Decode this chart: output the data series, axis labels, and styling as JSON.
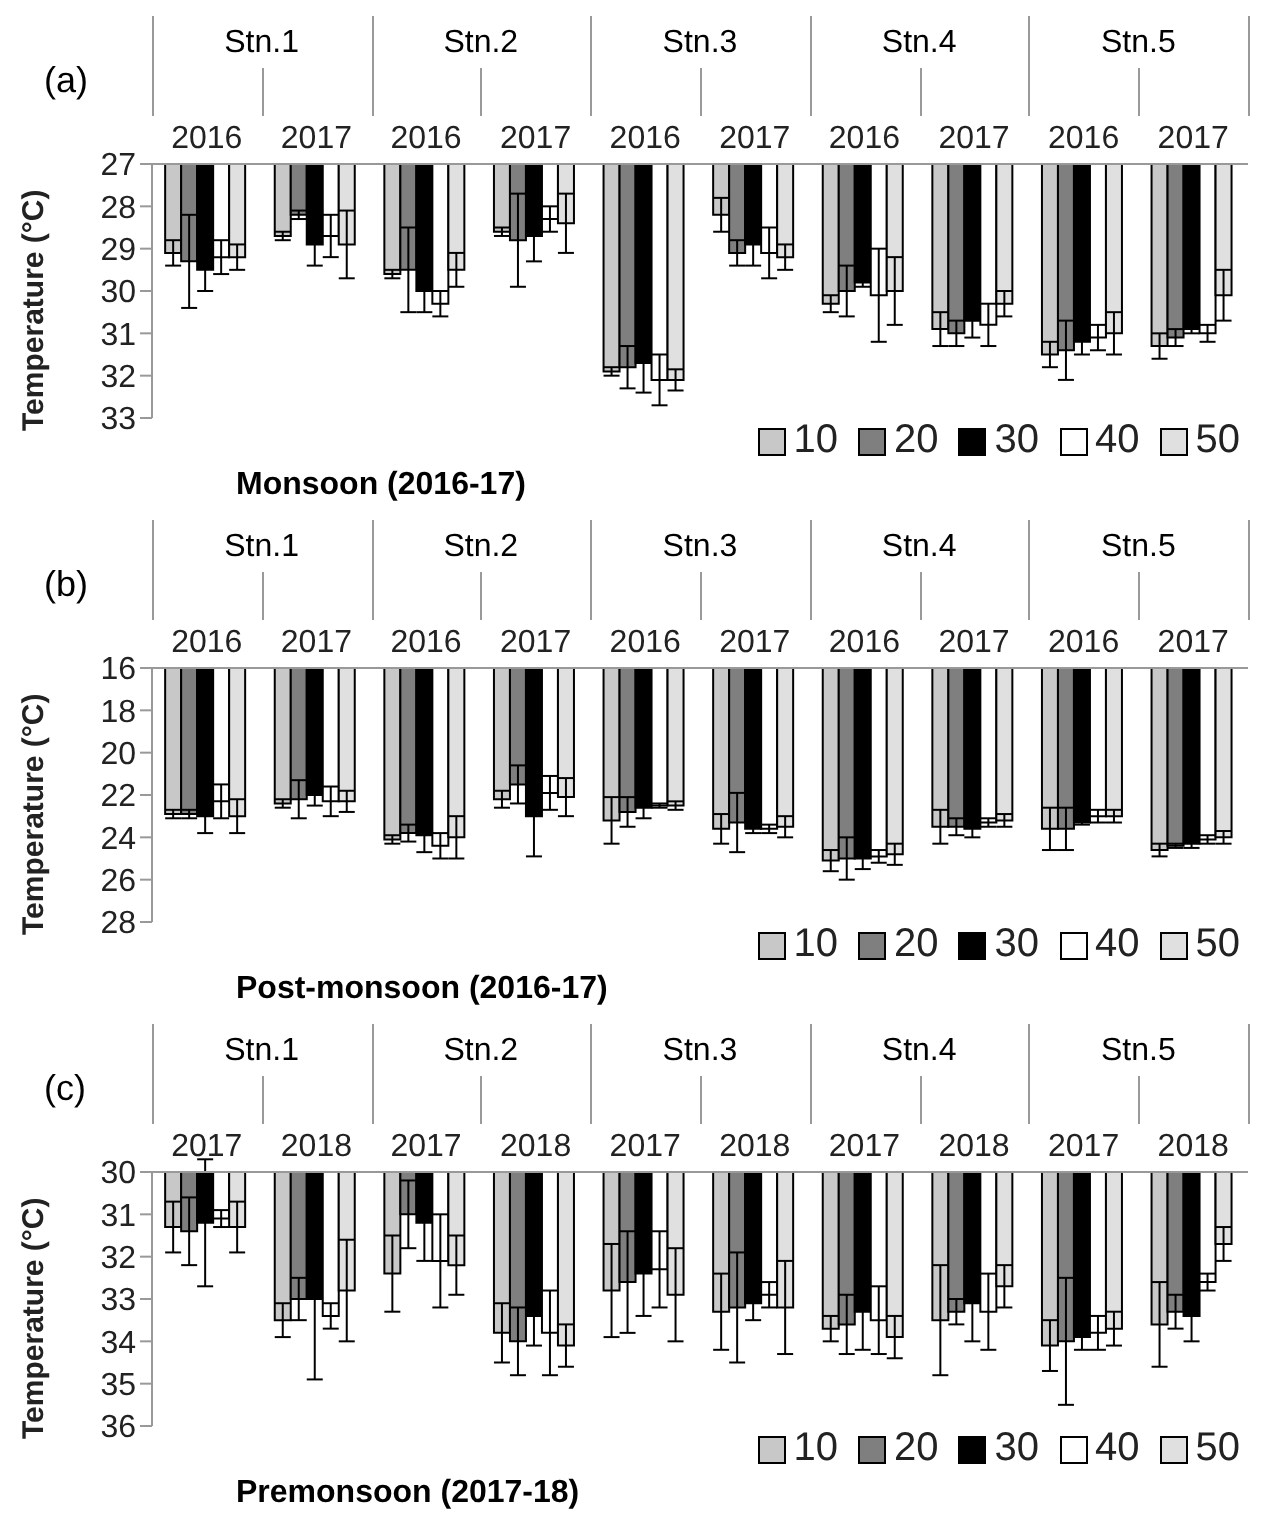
{
  "chart_data": [
    {
      "type": "bar",
      "title": "(a)",
      "xlabel": "Monsoon (2016-17)",
      "ylabel": "Temperature (°C)",
      "annotations": [
        "Stn.1",
        "Stn.2",
        "Stn.3",
        "Stn.4",
        "Stn.5"
      ],
      "categories": [
        "2016",
        "2017",
        "2016",
        "2017",
        "2016",
        "2017",
        "2016",
        "2017",
        "2016",
        "2017"
      ],
      "ylim": [
        33,
        27
      ],
      "yticks": [
        27,
        28,
        29,
        30,
        31,
        32,
        33
      ],
      "legend": "bottom right",
      "series": [
        {
          "name": "10",
          "color": "#c8c8c8",
          "values": [
            29.1,
            28.7,
            29.6,
            28.6,
            31.9,
            28.2,
            30.3,
            30.9,
            31.5,
            31.3
          ],
          "errors": [
            0.3,
            0.1,
            0.1,
            0.1,
            0.1,
            0.4,
            0.2,
            0.4,
            0.3,
            0.3
          ]
        },
        {
          "name": "20",
          "color": "#7f7f7f",
          "values": [
            29.3,
            28.2,
            29.5,
            28.8,
            31.8,
            29.1,
            30.0,
            31.0,
            31.4,
            31.1
          ],
          "errors": [
            1.1,
            0.1,
            1.0,
            1.1,
            0.5,
            0.3,
            0.6,
            0.3,
            0.7,
            0.2
          ]
        },
        {
          "name": "30",
          "color": "#000000",
          "values": [
            29.5,
            28.9,
            30.0,
            28.7,
            31.7,
            28.9,
            29.8,
            30.7,
            31.2,
            30.9
          ],
          "errors": [
            0.5,
            0.5,
            0.5,
            0.6,
            0.7,
            0.5,
            0.1,
            0.4,
            0.3,
            0.1
          ]
        },
        {
          "name": "40",
          "color": "#ffffff",
          "values": [
            29.2,
            28.7,
            30.3,
            28.3,
            32.1,
            29.1,
            30.1,
            30.8,
            31.1,
            31.0
          ],
          "errors": [
            0.4,
            0.5,
            0.3,
            0.3,
            0.6,
            0.6,
            1.1,
            0.5,
            0.3,
            0.2
          ]
        },
        {
          "name": "50",
          "color": "#e0e0e0",
          "values": [
            29.2,
            28.9,
            29.5,
            28.4,
            32.1,
            29.2,
            30.0,
            30.3,
            31.0,
            30.1
          ],
          "errors": [
            0.3,
            0.8,
            0.4,
            0.7,
            0.25,
            0.3,
            0.8,
            0.3,
            0.5,
            0.6
          ]
        }
      ]
    },
    {
      "type": "bar",
      "title": "(b)",
      "xlabel": "Post-monsoon (2016-17)",
      "ylabel": "Temperature (°C)",
      "annotations": [
        "Stn.1",
        "Stn.2",
        "Stn.3",
        "Stn.4",
        "Stn.5"
      ],
      "categories": [
        "2016",
        "2017",
        "2016",
        "2017",
        "2016",
        "2017",
        "2016",
        "2017",
        "2016",
        "2017"
      ],
      "ylim": [
        28,
        16
      ],
      "yticks": [
        16,
        18,
        20,
        22,
        24,
        26,
        28
      ],
      "legend": "bottom right",
      "series": [
        {
          "name": "10",
          "color": "#c8c8c8",
          "values": [
            22.9,
            22.4,
            24.1,
            22.2,
            23.2,
            23.6,
            25.1,
            23.5,
            23.6,
            24.6
          ],
          "errors": [
            0.2,
            0.2,
            0.2,
            0.4,
            1.1,
            0.7,
            0.5,
            0.8,
            1.0,
            0.3
          ]
        },
        {
          "name": "20",
          "color": "#7f7f7f",
          "values": [
            22.9,
            22.2,
            23.8,
            21.5,
            22.8,
            23.3,
            25.0,
            23.5,
            23.6,
            24.4
          ],
          "errors": [
            0.2,
            0.9,
            0.4,
            0.9,
            0.7,
            1.4,
            1.0,
            0.4,
            1.0,
            0.1
          ]
        },
        {
          "name": "30",
          "color": "#000000",
          "values": [
            23.0,
            22.0,
            23.9,
            23.0,
            22.6,
            23.6,
            25.0,
            23.6,
            23.3,
            24.3
          ],
          "errors": [
            0.8,
            0.5,
            0.8,
            1.9,
            0.5,
            0.2,
            0.5,
            0.4,
            0.1,
            0.2
          ]
        },
        {
          "name": "40",
          "color": "#ffffff",
          "values": [
            22.3,
            22.3,
            24.4,
            21.9,
            22.5,
            23.6,
            24.9,
            23.3,
            23.0,
            24.1
          ],
          "errors": [
            0.8,
            0.7,
            0.6,
            0.8,
            0.1,
            0.2,
            0.3,
            0.2,
            0.3,
            0.2
          ]
        },
        {
          "name": "50",
          "color": "#e0e0e0",
          "values": [
            23.0,
            22.3,
            24.0,
            22.1,
            22.5,
            23.5,
            24.8,
            23.2,
            23.0,
            24.0
          ],
          "errors": [
            0.8,
            0.5,
            1.0,
            0.9,
            0.2,
            0.5,
            0.5,
            0.3,
            0.3,
            0.3
          ]
        }
      ]
    },
    {
      "type": "bar",
      "title": "(c)",
      "xlabel": "Premonsoon (2017-18)",
      "ylabel": "Temperature (°C)",
      "annotations": [
        "Stn.1",
        "Stn.2",
        "Stn.3",
        "Stn.4",
        "Stn.5"
      ],
      "categories": [
        "2017",
        "2018",
        "2017",
        "2018",
        "2017",
        "2018",
        "2017",
        "2018",
        "2017",
        "2018"
      ],
      "ylim": [
        36,
        30
      ],
      "yticks": [
        30,
        31,
        32,
        33,
        34,
        35,
        36
      ],
      "legend": "bottom right",
      "series": [
        {
          "name": "10",
          "color": "#c8c8c8",
          "values": [
            31.3,
            33.5,
            32.4,
            33.8,
            32.8,
            33.3,
            33.7,
            33.5,
            34.1,
            33.6
          ],
          "errors": [
            0.6,
            0.4,
            0.9,
            0.7,
            1.1,
            0.9,
            0.3,
            1.3,
            0.6,
            1.0
          ]
        },
        {
          "name": "20",
          "color": "#7f7f7f",
          "values": [
            31.4,
            33.0,
            31.0,
            34.0,
            32.6,
            33.2,
            33.6,
            33.3,
            34.0,
            33.3
          ],
          "errors": [
            0.8,
            0.5,
            0.8,
            0.8,
            1.2,
            1.3,
            0.7,
            0.3,
            1.5,
            0.4
          ]
        },
        {
          "name": "30",
          "color": "#000000",
          "values": [
            31.2,
            33.0,
            31.2,
            33.4,
            32.4,
            33.1,
            33.3,
            33.1,
            33.9,
            33.4
          ],
          "errors": [
            1.5,
            1.9,
            0.9,
            0.7,
            1.0,
            0.4,
            0.9,
            0.9,
            0.3,
            0.6
          ]
        },
        {
          "name": "40",
          "color": "#ffffff",
          "values": [
            31.1,
            33.4,
            32.1,
            33.8,
            32.3,
            32.9,
            33.5,
            33.3,
            33.8,
            32.6
          ],
          "errors": [
            0.2,
            0.3,
            1.1,
            1.0,
            0.9,
            0.3,
            0.8,
            0.9,
            0.4,
            0.2
          ]
        },
        {
          "name": "50",
          "color": "#e0e0e0",
          "values": [
            31.3,
            32.8,
            32.2,
            34.1,
            32.9,
            33.2,
            33.9,
            32.7,
            33.7,
            31.7
          ],
          "errors": [
            0.6,
            1.2,
            0.7,
            0.5,
            1.1,
            1.1,
            0.5,
            0.5,
            0.4,
            0.4
          ]
        }
      ]
    }
  ]
}
